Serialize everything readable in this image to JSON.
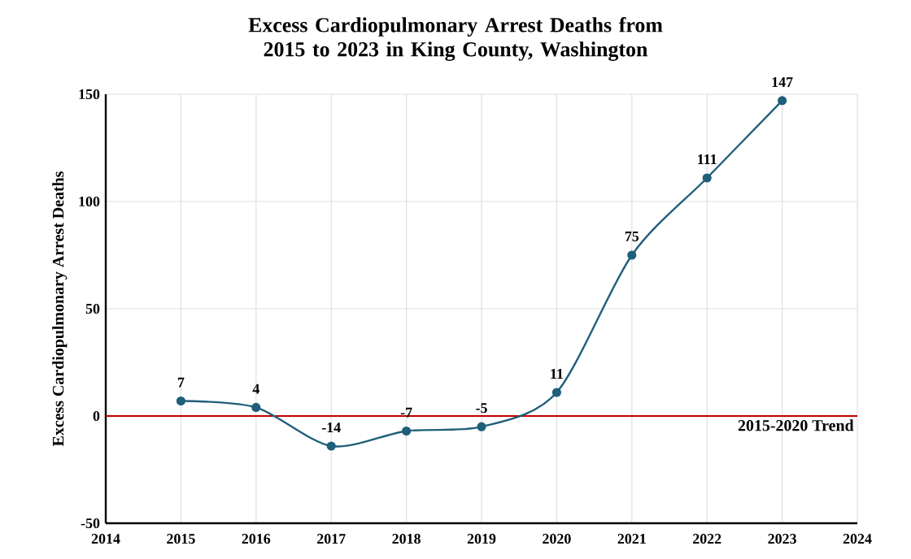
{
  "chart_data": {
    "type": "line",
    "title": "Excess Cardiopulmonary Arrest Deaths from 2015 to 2023 in King County, Washington",
    "ylabel": "Excess Cardiopulmonary Arrest Deaths",
    "x": [
      2015,
      2016,
      2017,
      2018,
      2019,
      2020,
      2021,
      2022,
      2023
    ],
    "series": [
      {
        "color": "#1f5f7a",
        "values": [
          7,
          4,
          -14,
          -7,
          -5,
          11,
          75,
          111,
          147
        ]
      }
    ],
    "xlim": [
      2014,
      2024
    ],
    "xticks": [
      2014,
      2015,
      2016,
      2017,
      2018,
      2019,
      2020,
      2021,
      2022,
      2023,
      2024
    ],
    "ylim": [
      -50,
      150
    ],
    "yticks": [
      -50,
      0,
      50,
      100,
      150
    ],
    "ref_lines": [
      {
        "axis": "y",
        "value": 0,
        "label": "2015-2020 Trend",
        "color": "#c00000"
      }
    ],
    "grid": true,
    "marker": "circle",
    "line_style": "solid",
    "data_labels": true
  }
}
